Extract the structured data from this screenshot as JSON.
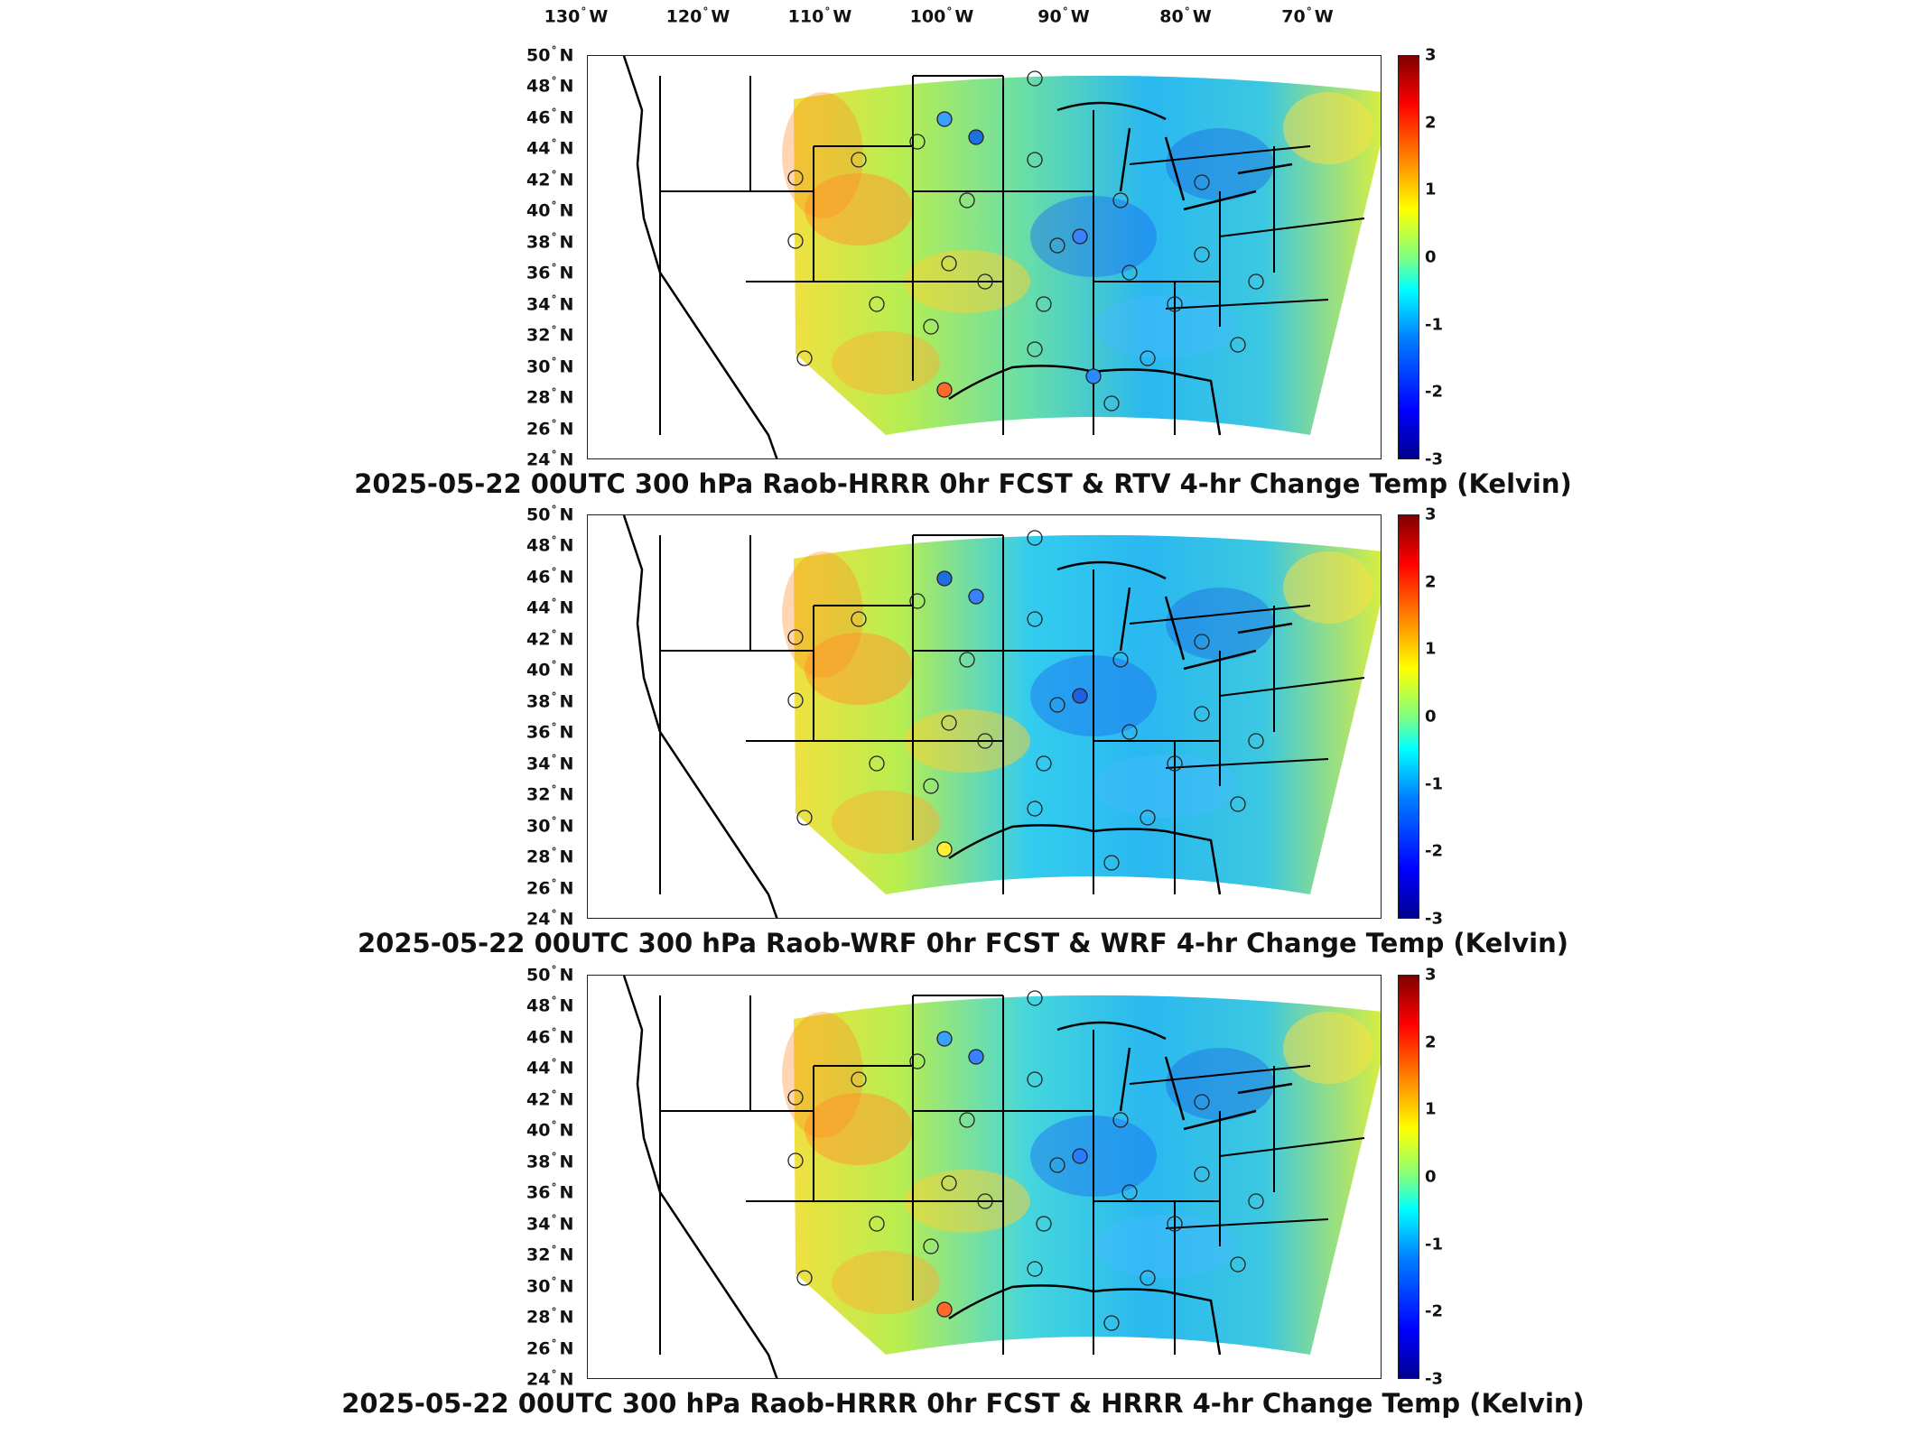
{
  "longitude_labels": [
    {
      "deg": "130",
      "hemi": "W"
    },
    {
      "deg": "120",
      "hemi": "W"
    },
    {
      "deg": "110",
      "hemi": "W"
    },
    {
      "deg": "100",
      "hemi": "W"
    },
    {
      "deg": "90",
      "hemi": "W"
    },
    {
      "deg": "80",
      "hemi": "W"
    },
    {
      "deg": "70",
      "hemi": "W"
    }
  ],
  "latitude_labels": [
    {
      "deg": "50",
      "hemi": "N"
    },
    {
      "deg": "48",
      "hemi": "N"
    },
    {
      "deg": "46",
      "hemi": "N"
    },
    {
      "deg": "44",
      "hemi": "N"
    },
    {
      "deg": "42",
      "hemi": "N"
    },
    {
      "deg": "40",
      "hemi": "N"
    },
    {
      "deg": "38",
      "hemi": "N"
    },
    {
      "deg": "36",
      "hemi": "N"
    },
    {
      "deg": "34",
      "hemi": "N"
    },
    {
      "deg": "32",
      "hemi": "N"
    },
    {
      "deg": "30",
      "hemi": "N"
    },
    {
      "deg": "28",
      "hemi": "N"
    },
    {
      "deg": "26",
      "hemi": "N"
    },
    {
      "deg": "24",
      "hemi": "N"
    }
  ],
  "colorbar": {
    "ticks": [
      "3",
      "2",
      "1",
      "0",
      "-1",
      "-2",
      "-3"
    ],
    "range": [
      -3,
      3
    ],
    "colormap": "jet"
  },
  "panels": [
    {
      "title": "2025-05-22 00UTC 300 hPa Raob-HRRR 0hr FCST & RTV 4-hr Change Temp (Kelvin)",
      "field_tint": "#66ddaa",
      "stations": [
        {
          "name": "bismarck-area",
          "fill": "#3aa0ff"
        },
        {
          "name": "aberdeen-area",
          "fill": "#1f6fe0"
        },
        {
          "name": "illinois-area",
          "fill": "#3a80ff"
        },
        {
          "name": "texas-west-area",
          "fill": "#ff6a2a"
        },
        {
          "name": "louisiana-area",
          "fill": "#2a8aff"
        }
      ]
    },
    {
      "title": "2025-05-22 00UTC 300 hPa Raob-WRF 0hr FCST & WRF 4-hr Change Temp (Kelvin)",
      "field_tint": "#33ccee",
      "stations": [
        {
          "name": "aberdeen-area",
          "fill": "#1f6fe0"
        },
        {
          "name": "illinois-area",
          "fill": "#3a80ff"
        },
        {
          "name": "corpus-christi-area",
          "fill": "#1f5fe0"
        },
        {
          "name": "mississippi-area",
          "fill": "#ffee33"
        }
      ]
    },
    {
      "title": "2025-05-22 00UTC 300 hPa Raob-HRRR 0hr FCST & HRRR 4-hr Change Temp (Kelvin)",
      "field_tint": "#44d6dd",
      "stations": [
        {
          "name": "bismarck-area",
          "fill": "#3aa0ff"
        },
        {
          "name": "illinois-area",
          "fill": "#3a80ff"
        },
        {
          "name": "great-lakes-area",
          "fill": "#2a7aff"
        },
        {
          "name": "texas-west-area",
          "fill": "#ff6a2a"
        }
      ]
    }
  ]
}
